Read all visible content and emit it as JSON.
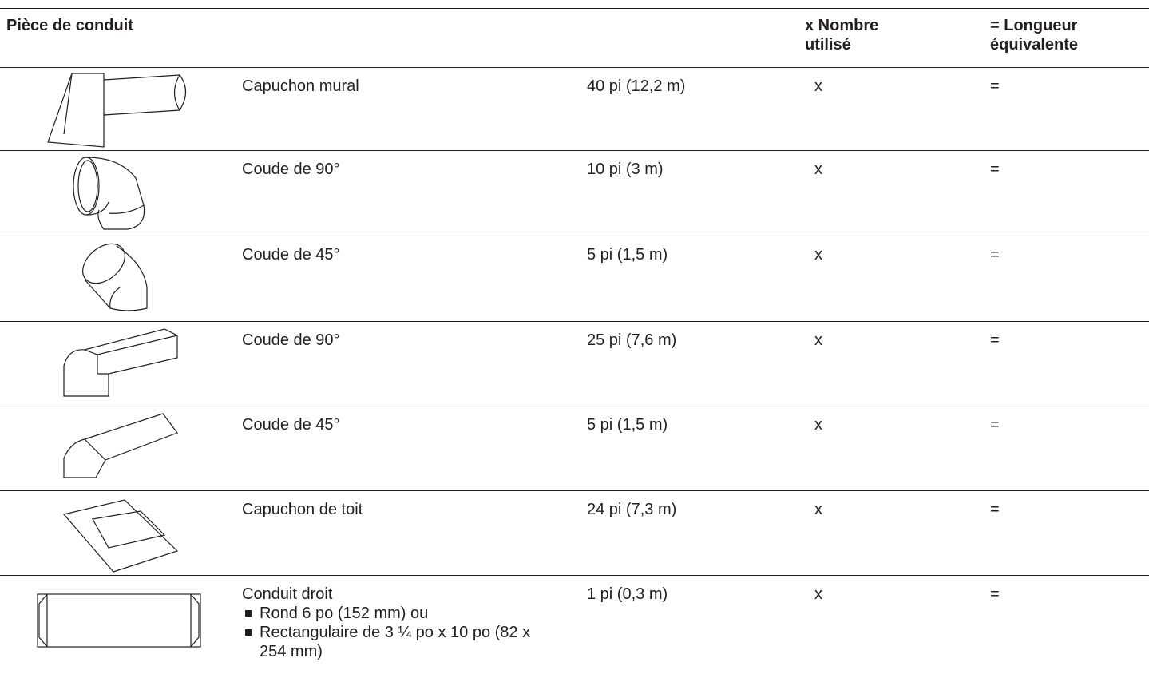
{
  "header": {
    "piece": "Pièce de conduit",
    "count": "x Nombre utilisé",
    "equivalent": "= Longueur équivalente"
  },
  "rows": [
    {
      "name": "Capuchon mural",
      "length": "40 pi (12,2 m)",
      "times": "x",
      "equals": "="
    },
    {
      "name": "Coude de 90°",
      "length": "10 pi (3 m)",
      "times": "x",
      "equals": "="
    },
    {
      "name": "Coude de 45°",
      "length": "5 pi (1,5 m)",
      "times": "x",
      "equals": "="
    },
    {
      "name": "Coude de 90°",
      "length": "25 pi (7,6 m)",
      "times": "x",
      "equals": "="
    },
    {
      "name": "Coude de 45°",
      "length": "5 pi (1,5 m)",
      "times": "x",
      "equals": "="
    },
    {
      "name": "Capuchon de toit",
      "length": "24 pi (7,3 m)",
      "times": "x",
      "equals": "="
    },
    {
      "name": "Conduit droit",
      "bullets": [
        "Rond 6 po (152 mm) ou",
        "Rectangulaire de 3 ¼ po x 10 po (82 x 254 mm)"
      ],
      "length": "1 pi (0,3 m)",
      "times": "x",
      "equals": "="
    }
  ]
}
